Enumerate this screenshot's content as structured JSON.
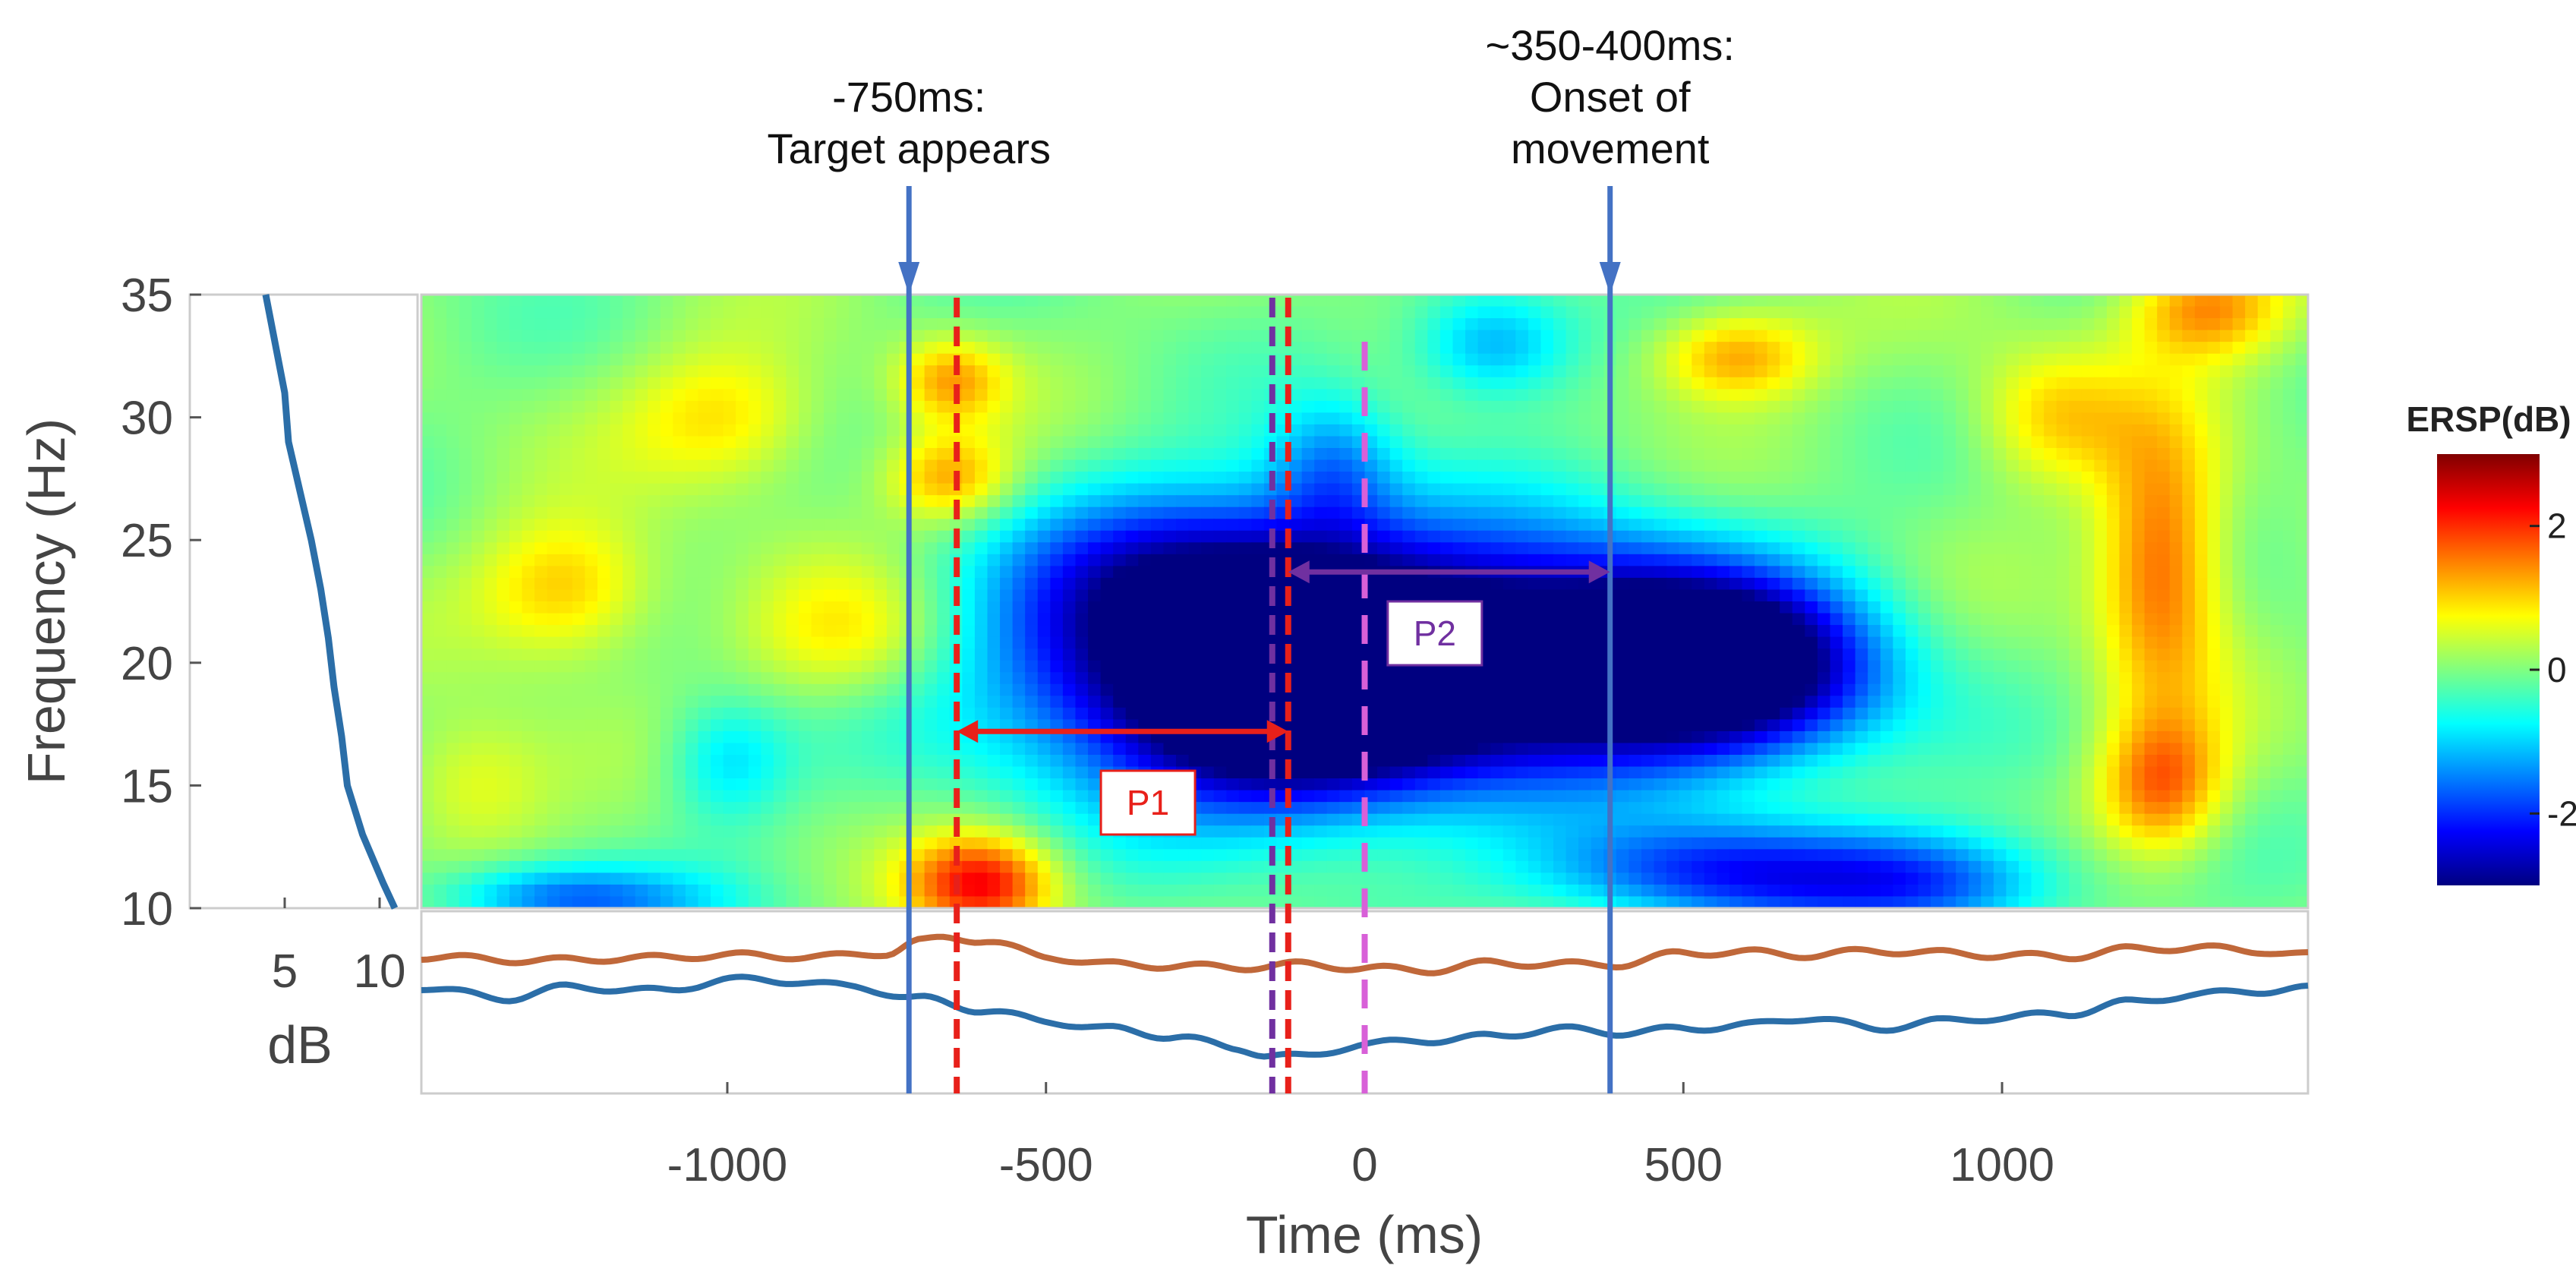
{
  "chart_data": {
    "type": "heatmap",
    "title": "",
    "xlabel": "Time (ms)",
    "ylabel": "Frequency (Hz)",
    "xlim": [
      -1480,
      1480
    ],
    "ylim": [
      10,
      35
    ],
    "x_ticks": [
      -1000,
      -500,
      0,
      500,
      1000
    ],
    "x_tick_labels": [
      "-1000",
      "-500",
      "0",
      "500",
      "1000"
    ],
    "y_ticks": [
      10,
      15,
      20,
      25,
      30,
      35
    ],
    "y_tick_labels": [
      "10",
      "15",
      "20",
      "25",
      "30",
      "35"
    ],
    "colorbar": {
      "title": "ERSP(dB)",
      "range": [
        -3,
        3
      ],
      "ticks": [
        2,
        0,
        -2
      ],
      "tick_labels": [
        "2",
        "0",
        "-2"
      ],
      "colors": [
        "#800000",
        "#ff0000",
        "#ff8000",
        "#ffff00",
        "#80ff80",
        "#00ffff",
        "#0080ff",
        "#0000ff",
        "#000080"
      ]
    },
    "heatmap_blobs": [
      {
        "t": -300,
        "f": 20,
        "st": 220,
        "sf": 3.5,
        "v": -3.0
      },
      {
        "t": -100,
        "f": 17.5,
        "st": 170,
        "sf": 3,
        "v": -2.2
      },
      {
        "t": 100,
        "f": 19,
        "st": 200,
        "sf": 3,
        "v": -2.2
      },
      {
        "t": 450,
        "f": 20,
        "st": 180,
        "sf": 3,
        "v": -2.8
      },
      {
        "t": 620,
        "f": 19.5,
        "st": 150,
        "sf": 2.5,
        "v": -2.2
      },
      {
        "t": 200,
        "f": 22,
        "st": 250,
        "sf": 3,
        "v": -1.4
      },
      {
        "t": -200,
        "f": 24,
        "st": 200,
        "sf": 2.5,
        "v": -1.6
      },
      {
        "t": 550,
        "f": 11.5,
        "st": 200,
        "sf": 1.5,
        "v": -2.0
      },
      {
        "t": 900,
        "f": 11,
        "st": 150,
        "sf": 1.5,
        "v": -1.6
      },
      {
        "t": -1200,
        "f": 10.3,
        "st": 150,
        "sf": 1,
        "v": -1.0
      },
      {
        "t": 200,
        "f": 33,
        "st": 90,
        "sf": 1.6,
        "v": -1.4
      },
      {
        "t": -50,
        "f": 28,
        "st": 70,
        "sf": 2,
        "v": -1.2
      },
      {
        "t": -1000,
        "f": 16,
        "st": 70,
        "sf": 1.8,
        "v": -1.0
      },
      {
        "t": -600,
        "f": 11,
        "st": 80,
        "sf": 1.4,
        "v": 2.2
      },
      {
        "t": 1250,
        "f": 24,
        "st": 70,
        "sf": 4,
        "v": 1.8
      },
      {
        "t": 1250,
        "f": 15,
        "st": 70,
        "sf": 2,
        "v": 1.6
      },
      {
        "t": 1320,
        "f": 34.5,
        "st": 90,
        "sf": 1.5,
        "v": 1.5
      },
      {
        "t": 580,
        "f": 32.5,
        "st": 90,
        "sf": 1.3,
        "v": 1.4
      },
      {
        "t": -1250,
        "f": 23,
        "st": 100,
        "sf": 2,
        "v": 1.2
      },
      {
        "t": -1000,
        "f": 30,
        "st": 110,
        "sf": 2,
        "v": 1.0
      },
      {
        "t": -650,
        "f": 27.5,
        "st": 70,
        "sf": 1.3,
        "v": 1.3
      },
      {
        "t": -650,
        "f": 31.5,
        "st": 60,
        "sf": 1.2,
        "v": 1.2
      },
      {
        "t": -800,
        "f": 21,
        "st": 120,
        "sf": 2,
        "v": 0.9
      },
      {
        "t": -1400,
        "f": 15,
        "st": 90,
        "sf": 2,
        "v": 0.8
      },
      {
        "t": 1080,
        "f": 30,
        "st": 90,
        "sf": 2,
        "v": 1.0
      },
      {
        "t": -1300,
        "f": 10.5,
        "st": 120,
        "sf": 1,
        "v": -0.8
      }
    ],
    "baseline_spectrum": {
      "xlabel_ticks": [
        "5",
        "10"
      ],
      "xlabel": "dB",
      "freq": [
        35,
        33,
        31,
        29,
        27,
        25,
        23,
        21,
        19,
        17,
        15,
        13,
        11,
        10
      ],
      "db": [
        4.0,
        4.5,
        5.0,
        5.2,
        5.8,
        6.4,
        6.9,
        7.3,
        7.6,
        8.0,
        8.3,
        9.1,
        10.2,
        10.8
      ]
    },
    "series": [
      {
        "name": "upper-trace",
        "color": "#c0683a",
        "x": [
          -1480,
          -1300,
          -1150,
          -1000,
          -850,
          -750,
          -700,
          -650,
          -600,
          -500,
          -400,
          -300,
          -200,
          -100,
          0,
          100,
          200,
          300,
          400,
          500,
          600,
          700,
          800,
          900,
          1000,
          1100,
          1200,
          1300,
          1400,
          1480
        ],
        "y": [
          0.6,
          0.55,
          0.58,
          0.62,
          0.6,
          0.65,
          0.8,
          0.85,
          0.82,
          0.6,
          0.5,
          0.48,
          0.46,
          0.5,
          0.45,
          0.42,
          0.52,
          0.5,
          0.5,
          0.65,
          0.66,
          0.62,
          0.68,
          0.65,
          0.62,
          0.6,
          0.7,
          0.72,
          0.68,
          0.62
        ]
      },
      {
        "name": "lower-trace",
        "color": "#2b6ea8",
        "x": [
          -1480,
          -1350,
          -1250,
          -1100,
          -1000,
          -900,
          -800,
          -700,
          -600,
          -500,
          -400,
          -300,
          -200,
          -150,
          -100,
          0,
          100,
          200,
          300,
          400,
          500,
          600,
          700,
          800,
          900,
          1000,
          1100,
          1200,
          1300,
          1400,
          1480
        ],
        "y": [
          0.2,
          0.05,
          0.2,
          0.15,
          0.3,
          0.28,
          0.2,
          0.05,
          -0.1,
          -0.25,
          -0.35,
          -0.45,
          -0.6,
          -0.7,
          -0.72,
          -0.55,
          -0.5,
          -0.45,
          -0.35,
          -0.4,
          -0.35,
          -0.3,
          -0.2,
          -0.35,
          -0.25,
          -0.2,
          -0.15,
          0.0,
          0.1,
          0.15,
          0.18
        ]
      }
    ],
    "vertical_lines": [
      {
        "t": -715,
        "style": "solid",
        "color": "#4472c4"
      },
      {
        "t": -640,
        "style": "dashed",
        "color": "#e8201a"
      },
      {
        "t": -145,
        "style": "dashed",
        "color": "#7030a0"
      },
      {
        "t": -120,
        "style": "dashed",
        "color": "#e8201a"
      },
      {
        "t": 0,
        "style": "dashed",
        "color": "#d860d8"
      },
      {
        "t": 385,
        "style": "solid",
        "color": "#4472c4"
      }
    ],
    "annotations": [
      {
        "t": -715,
        "lines": [
          "-750ms:",
          "Target appears"
        ]
      },
      {
        "t": 385,
        "lines": [
          "~350-400ms:",
          "Onset of",
          "movement"
        ]
      }
    ],
    "periods": [
      {
        "label": "P1",
        "t0": -640,
        "t1": -120,
        "f": 17.2,
        "color": "#e8201a",
        "label_t": -340,
        "label_f": 14.3
      },
      {
        "label": "P2",
        "t0": -120,
        "t1": 385,
        "f": 23.7,
        "color": "#7030a0",
        "label_t": 110,
        "label_f": 21.2
      }
    ]
  }
}
